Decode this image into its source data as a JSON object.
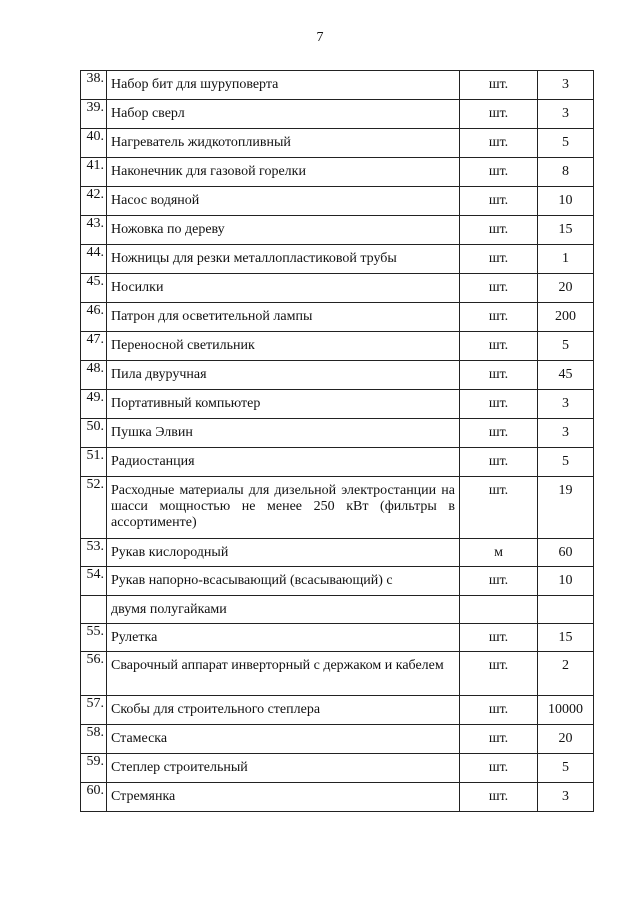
{
  "page_number": "7",
  "rows": [
    {
      "num": "38.",
      "name": "Набор бит для шуруповерта",
      "unit": "шт.",
      "qty": "3"
    },
    {
      "num": "39.",
      "name": "Набор сверл",
      "unit": "шт.",
      "qty": "3"
    },
    {
      "num": "40.",
      "name": "Нагреватель жидкотопливный",
      "unit": "шт.",
      "qty": "5"
    },
    {
      "num": "41.",
      "name": "Наконечник для газовой горелки",
      "unit": "шт.",
      "qty": "8"
    },
    {
      "num": "42.",
      "name": "Насос водяной",
      "unit": "шт.",
      "qty": "10"
    },
    {
      "num": "43.",
      "name": "Ножовка по дереву",
      "unit": "шт.",
      "qty": "15"
    },
    {
      "num": "44.",
      "name": "Ножницы для резки металлопластиковой трубы",
      "unit": "шт.",
      "qty": "1"
    },
    {
      "num": "45.",
      "name": "Носилки",
      "unit": "шт.",
      "qty": "20"
    },
    {
      "num": "46.",
      "name": "Патрон для осветительной лампы",
      "unit": "шт.",
      "qty": "200"
    },
    {
      "num": "47.",
      "name": "Переносной светильник",
      "unit": "шт.",
      "qty": "5"
    },
    {
      "num": "48.",
      "name": "Пила двуручная",
      "unit": "шт.",
      "qty": "45"
    },
    {
      "num": "49.",
      "name": "Портативный компьютер",
      "unit": "шт.",
      "qty": "3"
    },
    {
      "num": "50.",
      "name": "Пушка Элвин",
      "unit": "шт.",
      "qty": "3"
    },
    {
      "num": "51.",
      "name": "Радиостанция",
      "unit": "шт.",
      "qty": "5"
    },
    {
      "num": "52.",
      "name": "Расходные материалы для дизельной электростанции на шасси мощностью не менее 250 кВт (фильтры в ассортименте)",
      "unit": "шт.",
      "qty": "19"
    },
    {
      "num": "53.",
      "name": "Рукав кислородный",
      "unit": "м",
      "qty": "60"
    },
    {
      "num": "54.",
      "name": "Рукав напорно-всасывающий (всасывающий) с",
      "unit": "шт.",
      "qty": "10"
    },
    {
      "num": "",
      "name": "двумя полугайками",
      "unit": "",
      "qty": ""
    },
    {
      "num": "55.",
      "name": "Рулетка",
      "unit": "шт.",
      "qty": "15"
    },
    {
      "num": "56.",
      "name": "Сварочный аппарат инверторный с держаком и кабелем",
      "unit": "шт.",
      "qty": "2"
    },
    {
      "num": "57.",
      "name": "Скобы для строительного степлера",
      "unit": "шт.",
      "qty": "10000"
    },
    {
      "num": "58.",
      "name": "Стамеска",
      "unit": "шт.",
      "qty": "20"
    },
    {
      "num": "59.",
      "name": "Степлер строительный",
      "unit": "шт.",
      "qty": "5"
    },
    {
      "num": "60.",
      "name": "Стремянка",
      "unit": "шт.",
      "qty": "3"
    }
  ]
}
